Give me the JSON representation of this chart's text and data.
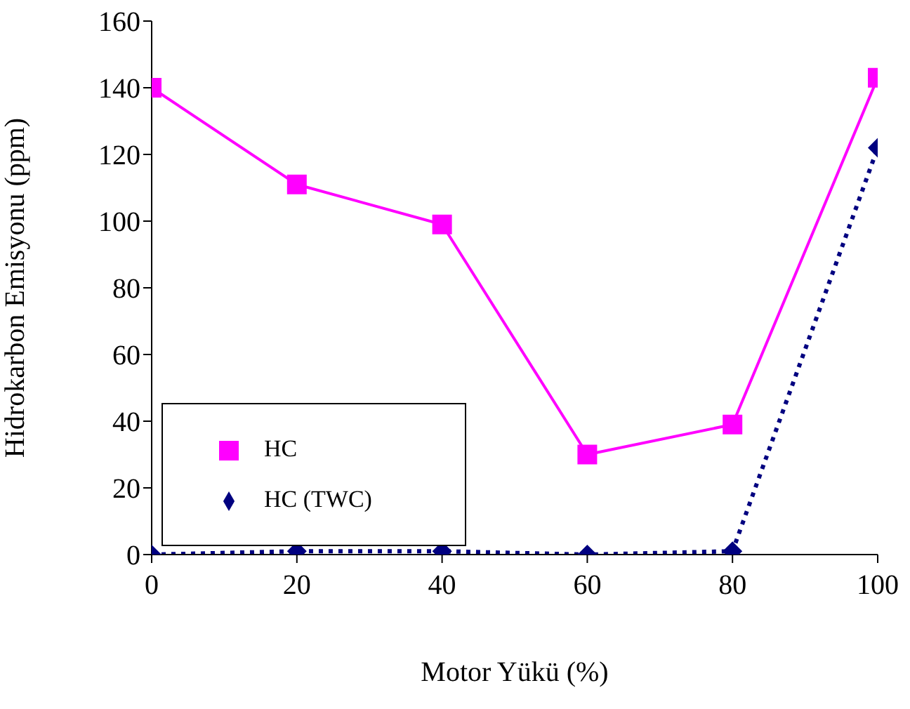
{
  "chart_data": {
    "type": "line",
    "xlabel": "Motor Yükü (%)",
    "ylabel": "Hidrokarbon Emisyonu (ppm)",
    "x": [
      0,
      20,
      40,
      60,
      80,
      100
    ],
    "series": [
      {
        "name": "HC (TWC)",
        "color": "#000080",
        "values": [
          0,
          1,
          1,
          0,
          1,
          122
        ],
        "marker": "diamond",
        "line_style": "dotted"
      },
      {
        "name": "HC",
        "color": "#ff00ff",
        "values": [
          140,
          111,
          99,
          30,
          39,
          143
        ],
        "marker": "square",
        "line_style": "solid"
      }
    ],
    "xlim": [
      0,
      100
    ],
    "xticks": [
      0,
      20,
      40,
      60,
      80,
      100
    ],
    "ylim": [
      0,
      160
    ],
    "yticks": [
      0,
      20,
      40,
      60,
      80,
      100,
      120,
      140,
      160
    ],
    "grid": false,
    "legend": "bottom left"
  }
}
